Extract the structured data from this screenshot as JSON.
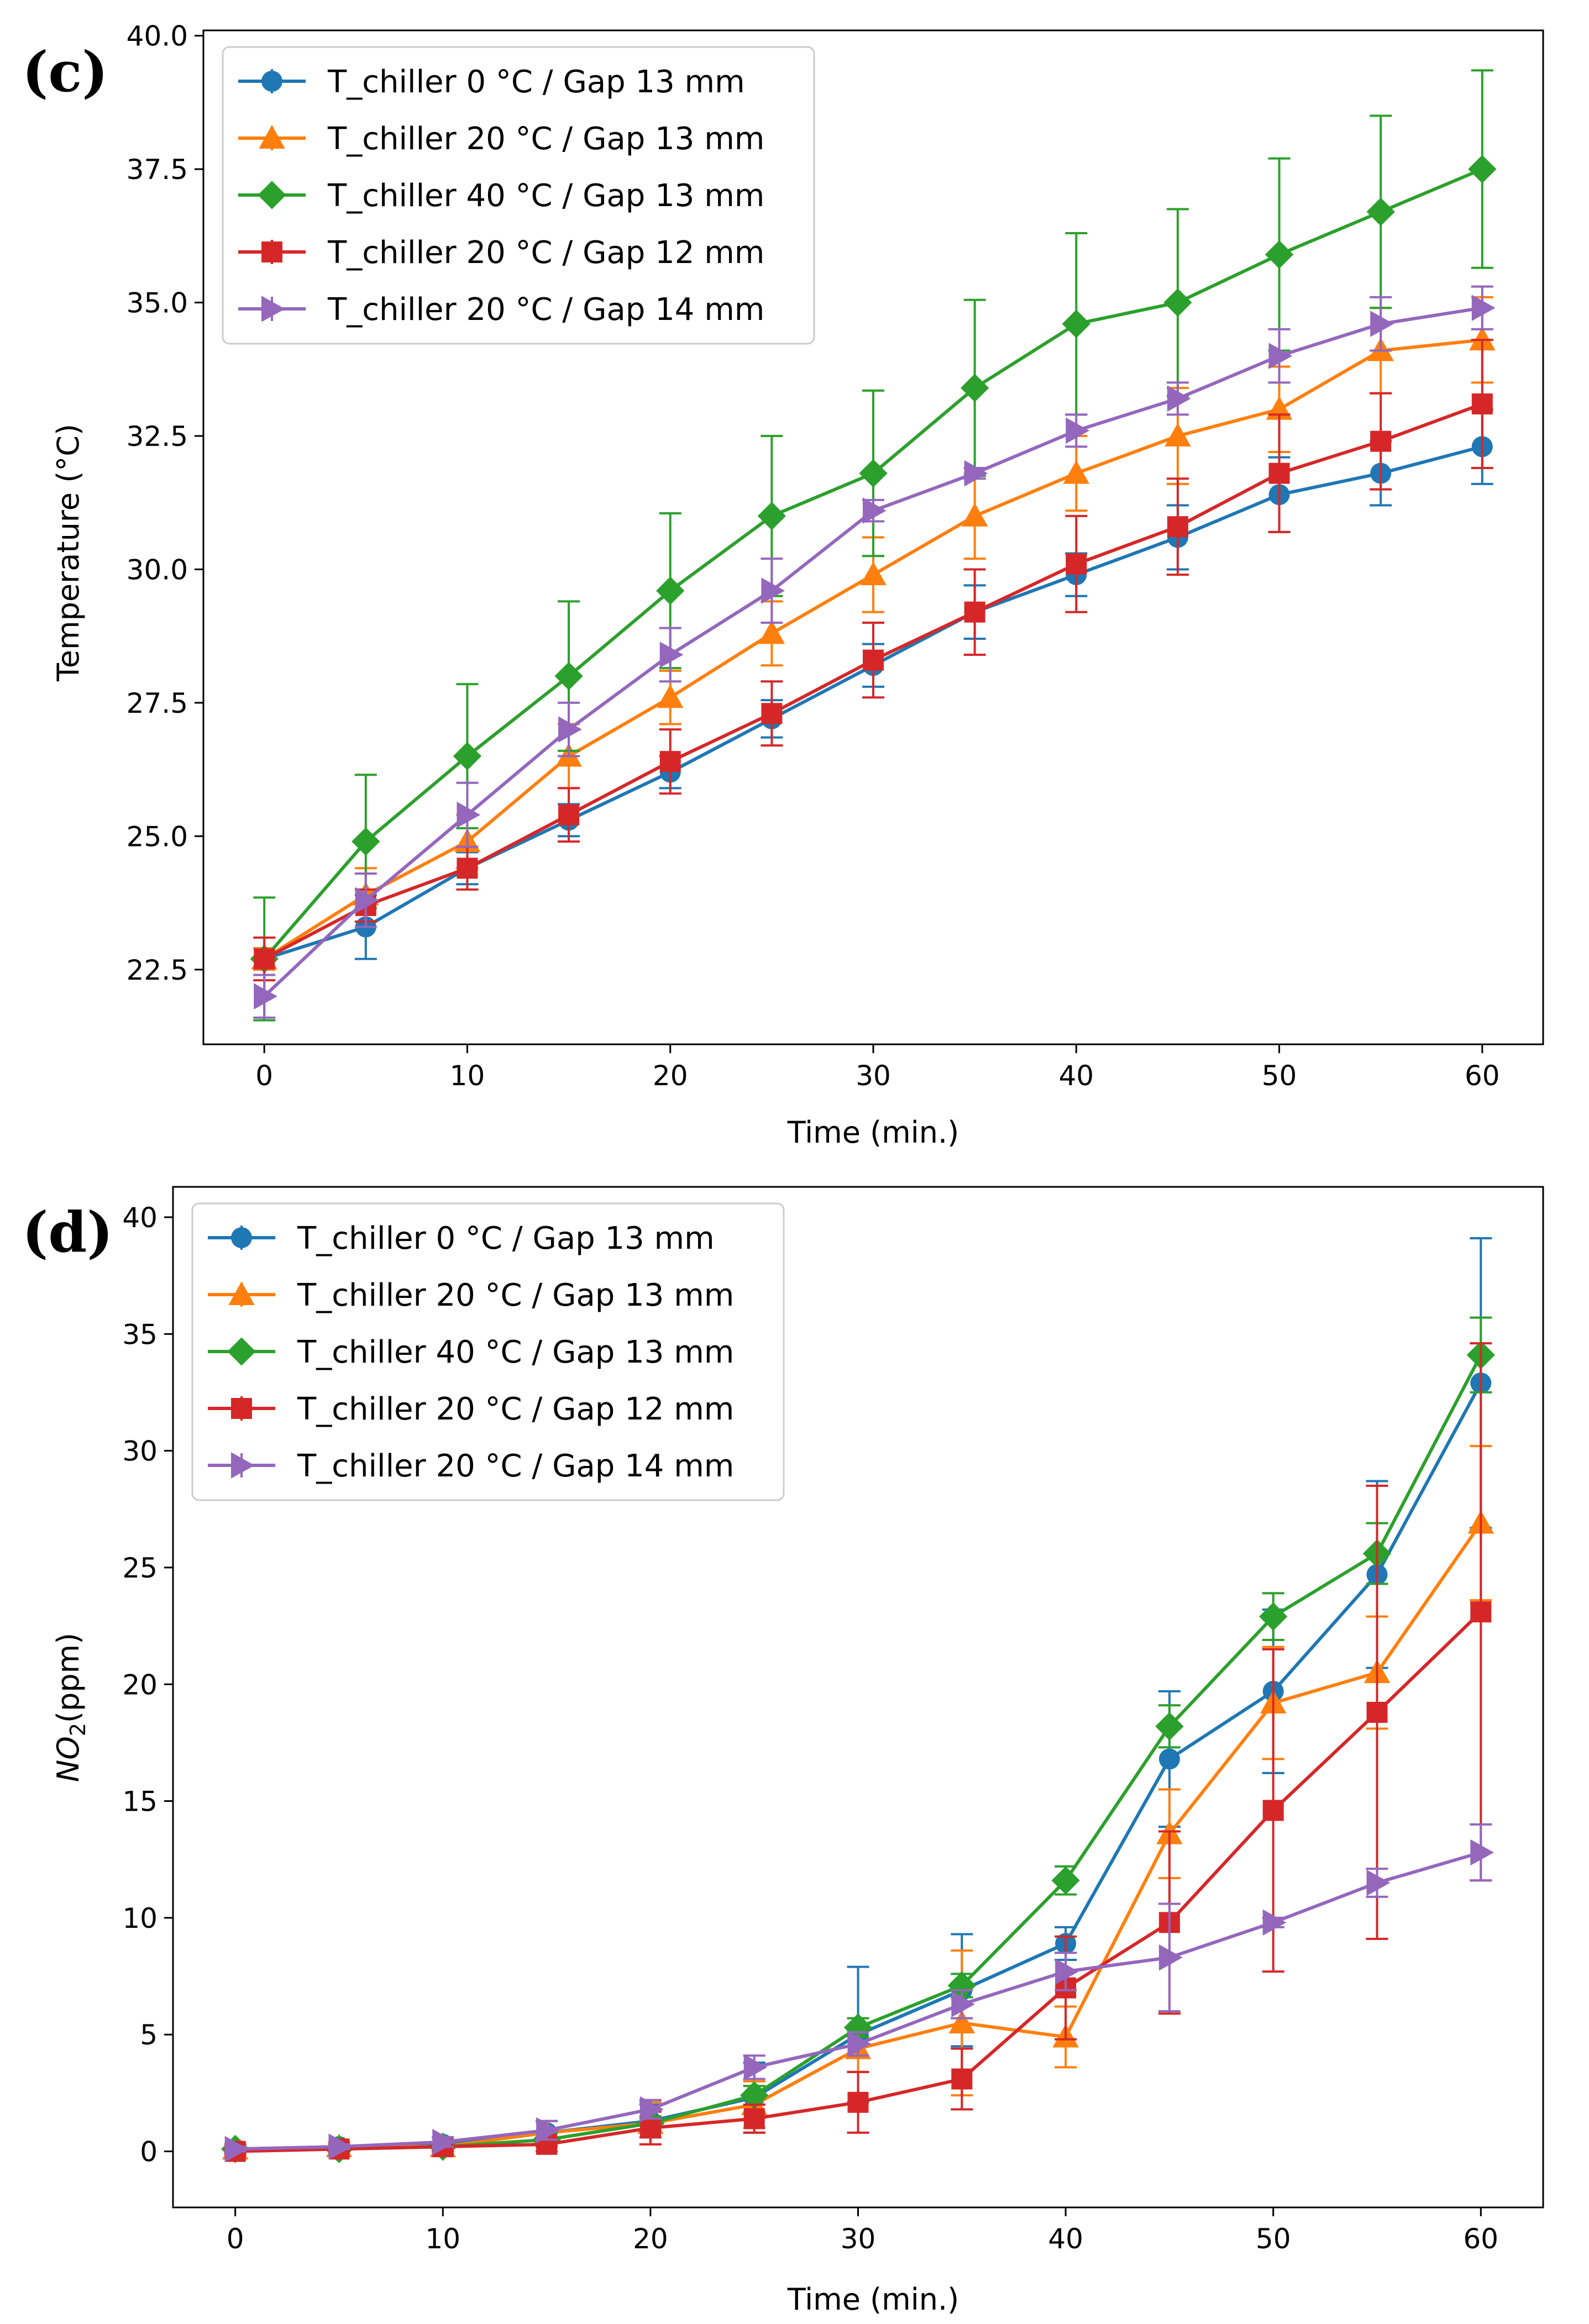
{
  "chart_data": [
    {
      "type": "line",
      "panel_label": "(c)",
      "xlabel": "Time (min.)",
      "ylabel": "Temperature (°C)",
      "xlim": [
        -3,
        63
      ],
      "ylim": [
        21.1,
        40.1
      ],
      "xticks": [
        0,
        10,
        20,
        30,
        40,
        50,
        60
      ],
      "xtick_labels": [
        "0",
        "10",
        "20",
        "30",
        "40",
        "50",
        "60"
      ],
      "yticks": [
        22.5,
        25.0,
        27.5,
        30.0,
        32.5,
        35.0,
        37.5,
        40.0
      ],
      "ytick_labels": [
        "22.5",
        "25.0",
        "27.5",
        "30.0",
        "32.5",
        "35.0",
        "37.5",
        "40.0"
      ],
      "legend_position": "upper-left",
      "x": [
        0,
        5,
        10,
        15,
        20,
        25,
        30,
        35,
        40,
        45,
        50,
        55,
        60
      ],
      "series": [
        {
          "name": "T_chiller 0 °C / Gap 13 mm",
          "color": "#1f77b4",
          "marker": "circle",
          "values": [
            22.7,
            23.3,
            24.4,
            25.3,
            26.2,
            27.2,
            28.2,
            29.2,
            29.9,
            30.6,
            31.4,
            31.8,
            32.3
          ],
          "errors": [
            0.2,
            0.6,
            0.3,
            0.3,
            0.3,
            0.35,
            0.4,
            0.5,
            0.4,
            0.6,
            0.7,
            0.6,
            0.7
          ]
        },
        {
          "name": "T_chiller 20 °C / Gap 13 mm",
          "color": "#ff7f0e",
          "marker": "triangle-up",
          "values": [
            22.7,
            23.9,
            24.9,
            26.5,
            27.6,
            28.8,
            29.9,
            31.0,
            31.8,
            32.5,
            33.0,
            34.1,
            34.3
          ],
          "errors": [
            0.2,
            0.5,
            0.5,
            0.6,
            0.5,
            0.6,
            0.7,
            0.8,
            0.7,
            0.9,
            0.8,
            0.8,
            0.8
          ]
        },
        {
          "name": "T_chiller 40 °C / Gap 13 mm",
          "color": "#2ca02c",
          "marker": "diamond",
          "values": [
            22.7,
            24.9,
            26.5,
            28.0,
            29.6,
            31.0,
            31.8,
            33.4,
            34.6,
            35.0,
            35.9,
            36.7,
            37.5
          ],
          "errors": [
            1.15,
            1.25,
            1.35,
            1.4,
            1.45,
            1.5,
            1.55,
            1.65,
            1.7,
            1.75,
            1.8,
            1.8,
            1.85
          ]
        },
        {
          "name": "T_chiller 20 °C / Gap 12 mm",
          "color": "#d62728",
          "marker": "square",
          "values": [
            22.7,
            23.7,
            24.4,
            25.4,
            26.4,
            27.3,
            28.3,
            29.2,
            30.1,
            30.8,
            31.8,
            32.4,
            33.1
          ],
          "errors": [
            0.4,
            0.3,
            0.4,
            0.5,
            0.6,
            0.6,
            0.7,
            0.8,
            0.9,
            0.9,
            1.1,
            0.9,
            1.2
          ]
        },
        {
          "name": "T_chiller 20 °C / Gap 14 mm",
          "color": "#9467bd",
          "marker": "triangle-right",
          "values": [
            22.0,
            23.8,
            25.4,
            27.0,
            28.4,
            29.6,
            31.1,
            31.8,
            32.6,
            33.2,
            34.0,
            34.6,
            34.9
          ],
          "errors": [
            0.4,
            0.5,
            0.6,
            0.5,
            0.5,
            0.6,
            0.2,
            0.1,
            0.3,
            0.3,
            0.5,
            0.5,
            0.4
          ]
        }
      ]
    },
    {
      "type": "line",
      "panel_label": "(d)",
      "xlabel": "Time (min.)",
      "ylabel_main": "NO",
      "ylabel_sub": "2",
      "ylabel_unit": "(ppm)",
      "xlim": [
        -3,
        63
      ],
      "ylim": [
        -2.4,
        41.3
      ],
      "xticks": [
        0,
        10,
        20,
        30,
        40,
        50,
        60
      ],
      "xtick_labels": [
        "0",
        "10",
        "20",
        "30",
        "40",
        "50",
        "60"
      ],
      "yticks": [
        0,
        5,
        10,
        15,
        20,
        25,
        30,
        35,
        40
      ],
      "ytick_labels": [
        "0",
        "5",
        "10",
        "15",
        "20",
        "25",
        "30",
        "35",
        "40"
      ],
      "legend_position": "upper-left",
      "x": [
        0,
        5,
        10,
        15,
        20,
        25,
        30,
        35,
        40,
        45,
        50,
        55,
        60
      ],
      "series": [
        {
          "name": "T_chiller 0 °C / Gap 13 mm",
          "color": "#1f77b4",
          "marker": "circle",
          "values": [
            0.1,
            0.2,
            0.3,
            0.8,
            1.3,
            2.3,
            5.0,
            6.9,
            8.9,
            16.8,
            19.7,
            24.7,
            32.9
          ],
          "errors": [
            0.2,
            0.2,
            0.3,
            0.5,
            0.7,
            1.5,
            2.9,
            2.4,
            0.7,
            2.9,
            3.5,
            4.0,
            6.2
          ]
        },
        {
          "name": "T_chiller 20 °C / Gap 13 mm",
          "color": "#ff7f0e",
          "marker": "triangle-up",
          "values": [
            0.1,
            0.2,
            0.2,
            0.8,
            1.2,
            2.0,
            4.4,
            5.5,
            4.9,
            13.6,
            19.2,
            20.5,
            26.9
          ],
          "errors": [
            0.2,
            0.2,
            0.2,
            0.5,
            0.9,
            1.0,
            1.0,
            3.1,
            1.3,
            1.9,
            2.4,
            2.4,
            3.3
          ]
        },
        {
          "name": "T_chiller 40 °C / Gap 13 mm",
          "color": "#2ca02c",
          "marker": "diamond",
          "values": [
            0.1,
            0.1,
            0.2,
            0.5,
            1.2,
            2.4,
            5.3,
            7.1,
            11.6,
            18.2,
            22.9,
            25.6,
            34.1
          ],
          "errors": [
            0.1,
            0.1,
            0.2,
            0.3,
            0.3,
            0.4,
            0.4,
            0.5,
            0.6,
            0.9,
            1.0,
            1.3,
            1.6
          ]
        },
        {
          "name": "T_chiller 20 °C / Gap 12 mm",
          "color": "#d62728",
          "marker": "square",
          "values": [
            0.0,
            0.1,
            0.2,
            0.3,
            1.0,
            1.4,
            2.1,
            3.1,
            7.0,
            9.8,
            14.6,
            18.8,
            23.1
          ],
          "errors": [
            0.1,
            0.1,
            0.2,
            0.3,
            0.7,
            0.6,
            1.3,
            1.3,
            2.2,
            3.9,
            6.9,
            9.7,
            11.5
          ]
        },
        {
          "name": "T_chiller 20 °C / Gap 14 mm",
          "color": "#9467bd",
          "marker": "triangle-right",
          "values": [
            0.1,
            0.2,
            0.4,
            0.9,
            1.8,
            3.6,
            4.6,
            6.3,
            7.7,
            8.3,
            9.8,
            11.5,
            12.8
          ],
          "errors": [
            0.1,
            0.1,
            0.2,
            0.4,
            0.4,
            0.5,
            0.5,
            0.6,
            0.8,
            2.3,
            0.2,
            0.6,
            1.2
          ]
        }
      ]
    }
  ]
}
